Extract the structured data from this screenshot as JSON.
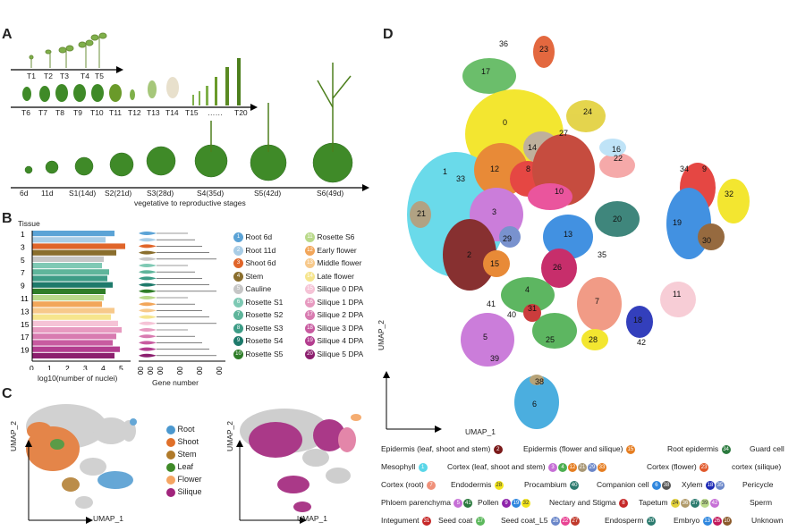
{
  "panels": {
    "A": "A",
    "B": "B",
    "C": "C",
    "D": "D"
  },
  "panelA": {
    "row1": [
      "T1",
      "T2",
      "T3",
      "T4",
      "T5"
    ],
    "row2": [
      "T6",
      "T7",
      "T8",
      "T9",
      "T10",
      "T11",
      "T12",
      "T13",
      "T14",
      "T15",
      "……",
      "T20"
    ],
    "row3": [
      "6d",
      "11d",
      "S1(14d)",
      "S2(21d)",
      "S3(28d)",
      "S4(35d)",
      "S5(42d)",
      "S6(49d)"
    ],
    "caption": "vegetative to reproductive stages"
  },
  "panelB": {
    "tissue_label": "Tissue",
    "xlabel_left": "log10(number of nuclei)",
    "xlabel_right": "Gene number",
    "left_ticks": [
      "0",
      "1",
      "2",
      "3",
      "4",
      "5"
    ],
    "right_ticks": [
      "1000",
      "2000",
      "3000",
      "5000",
      "7000",
      "9000"
    ],
    "row_labels": [
      "1",
      "3",
      "5",
      "7",
      "9",
      "11",
      "13",
      "15",
      "17",
      "19"
    ],
    "legend": [
      {
        "n": "1",
        "label": "Root 6d",
        "color": "#5ba3d6"
      },
      {
        "n": "2",
        "label": "Root 11d",
        "color": "#a9cde6"
      },
      {
        "n": "3",
        "label": "Shoot 6d",
        "color": "#e0652a"
      },
      {
        "n": "4",
        "label": "Stem",
        "color": "#8a6e2d"
      },
      {
        "n": "5",
        "label": "Cauline",
        "color": "#c6c6c6"
      },
      {
        "n": "6",
        "label": "Rosette S1",
        "color": "#7ec9b4"
      },
      {
        "n": "7",
        "label": "Rosette S2",
        "color": "#5fb59b"
      },
      {
        "n": "8",
        "label": "Rosette S3",
        "color": "#3d9c86"
      },
      {
        "n": "9",
        "label": "Rosette S4",
        "color": "#1e7a6b"
      },
      {
        "n": "10",
        "label": "Rosette S5",
        "color": "#2f7d28"
      },
      {
        "n": "11",
        "label": "Rosette S6",
        "color": "#b9d98a"
      },
      {
        "n": "12",
        "label": "Early flower",
        "color": "#f2a65a"
      },
      {
        "n": "13",
        "label": "Middle flower",
        "color": "#f7c98b"
      },
      {
        "n": "14",
        "label": "Late flower",
        "color": "#f6e58d"
      },
      {
        "n": "15",
        "label": "Silique 0 DPA",
        "color": "#f5c3d6"
      },
      {
        "n": "16",
        "label": "Silique 1 DPA",
        "color": "#e79ac0"
      },
      {
        "n": "17",
        "label": "Silique 2 DPA",
        "color": "#d87bb0"
      },
      {
        "n": "18",
        "label": "Silique 3 DPA",
        "color": "#c85ba0"
      },
      {
        "n": "19",
        "label": "Silique 4 DPA",
        "color": "#b33d8f"
      },
      {
        "n": "20",
        "label": "Silique 5 DPA",
        "color": "#8c1f6e"
      }
    ]
  },
  "chart_data": {
    "type": "bar",
    "categories": [
      "1",
      "2",
      "3",
      "4",
      "5",
      "6",
      "7",
      "8",
      "9",
      "10",
      "11",
      "12",
      "13",
      "14",
      "15",
      "16",
      "17",
      "18",
      "19",
      "20"
    ],
    "values": [
      4.6,
      4.1,
      5.2,
      4.7,
      4.0,
      3.9,
      4.3,
      4.2,
      4.5,
      4.1,
      4.0,
      3.9,
      4.6,
      4.4,
      4.8,
      5.0,
      4.7,
      4.5,
      4.9,
      4.6
    ],
    "xlabel": "log10(number of nuclei)",
    "xlim": [
      0,
      5.5
    ]
  },
  "panelC": {
    "axis_y": "UMAP_2",
    "axis_x": "UMAP_1",
    "legend": [
      {
        "label": "Root",
        "color": "#4b98cf"
      },
      {
        "label": "Shoot",
        "color": "#e0702a"
      },
      {
        "label": "Stem",
        "color": "#b07a2a"
      },
      {
        "label": "Leaf",
        "color": "#3f8a28"
      },
      {
        "label": "Flower",
        "color": "#f5a562"
      },
      {
        "label": "Silique",
        "color": "#a1247c"
      }
    ]
  },
  "panelD": {
    "axis_y": "UMAP_2",
    "axis_x": "UMAP_1",
    "legend_lines": [
      "Epidermis (leaf, shoot and stem)",
      "Epidermis (flower and silique)",
      "Root epidermis",
      "Guard cell",
      "Mesophyll",
      "Cortex (leaf, shoot and stem)",
      "Cortex (flower)",
      "cortex (silique)",
      "Cortex (root)",
      "Endodermis",
      "Procambium",
      "Companion cell",
      "Xylem",
      "Pericycle",
      "Phloem parenchyma",
      "Pollen",
      "Nectary and Stigma",
      "Tapetum",
      "Sperm",
      "Integument",
      "Seed coat",
      "Seed coat_L5",
      "Endosperm",
      "Embryo",
      "Unknown"
    ]
  }
}
